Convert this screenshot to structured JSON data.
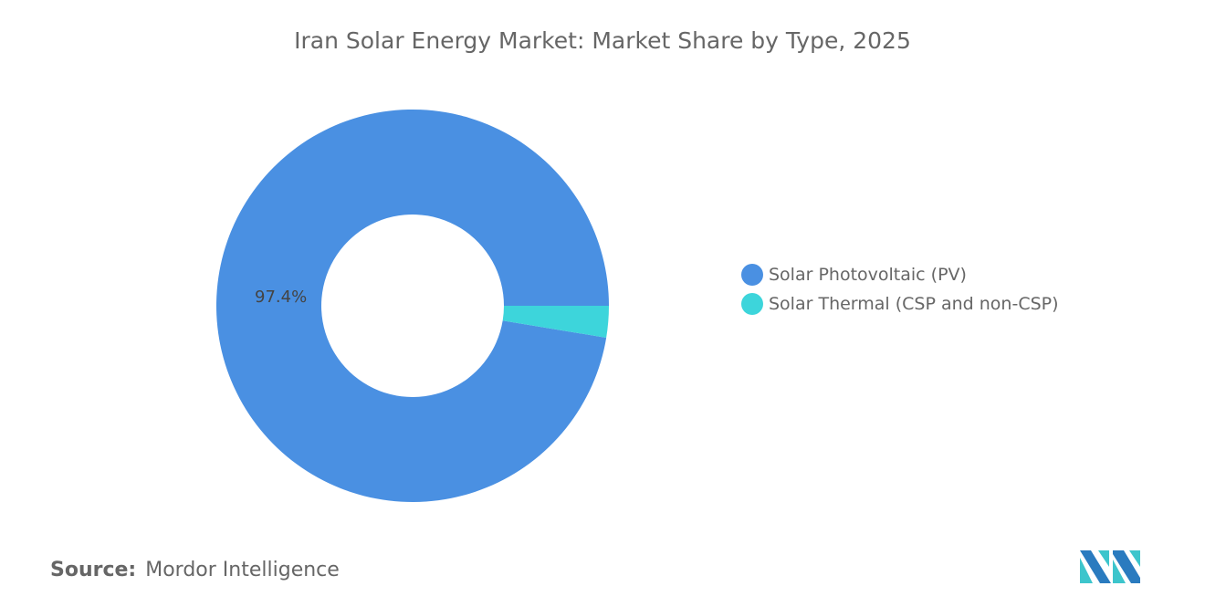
{
  "chart_data": {
    "type": "pie",
    "variant": "donut",
    "title": "Iran Solar Energy Market: Market Share by Type, 2025",
    "categories": [
      "Solar Photovoltaic (PV)",
      "Solar Thermal (CSP and non-CSP)"
    ],
    "values": [
      97.4,
      2.6
    ],
    "unit": "%",
    "colors": [
      "#4A90E2",
      "#3DD5DB"
    ],
    "data_labels": [
      "97.4%",
      ""
    ],
    "legend_position": "right"
  },
  "footer": {
    "source_label": "Source:",
    "source_value": "Mordor Intelligence"
  },
  "logo": {
    "name": "Mordor Intelligence logo",
    "colors": [
      "#2A7BBF",
      "#3DC5CC"
    ]
  }
}
